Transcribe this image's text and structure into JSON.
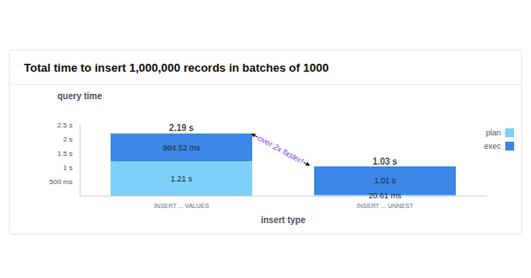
{
  "chart_data": {
    "type": "bar",
    "title": "Total time to insert 1,000,000 records in batches of 1000",
    "y_label": "query time",
    "x_label": "insert type",
    "categories": [
      "INSERT ... VALUES",
      "INSERT ... UNNEST"
    ],
    "series": [
      {
        "name": "plan",
        "color": "#7dd0f8",
        "values": [
          1.21,
          0.02061
        ],
        "value_labels": [
          "1.21 s",
          "20.61 ms"
        ]
      },
      {
        "name": "exec",
        "color": "#3b86e6",
        "values": [
          0.98452,
          1.01
        ],
        "value_labels": [
          "984.52 ms",
          "1.01 s"
        ]
      }
    ],
    "totals": [
      2.19,
      1.03
    ],
    "total_labels": [
      "2.19 s",
      "1.03 s"
    ],
    "ylim": [
      0,
      2.5
    ],
    "yticks": [
      {
        "value": 0.5,
        "label": "500 ms"
      },
      {
        "value": 1,
        "label": "1 s"
      },
      {
        "value": 1.5,
        "label": "1.5 s"
      },
      {
        "value": 2,
        "label": "2 s"
      },
      {
        "value": 2.5,
        "label": "2.5 s"
      }
    ],
    "stacked": true,
    "data_labels": true,
    "legend": "right",
    "grid": false,
    "annotation": "over 2x faster!"
  }
}
